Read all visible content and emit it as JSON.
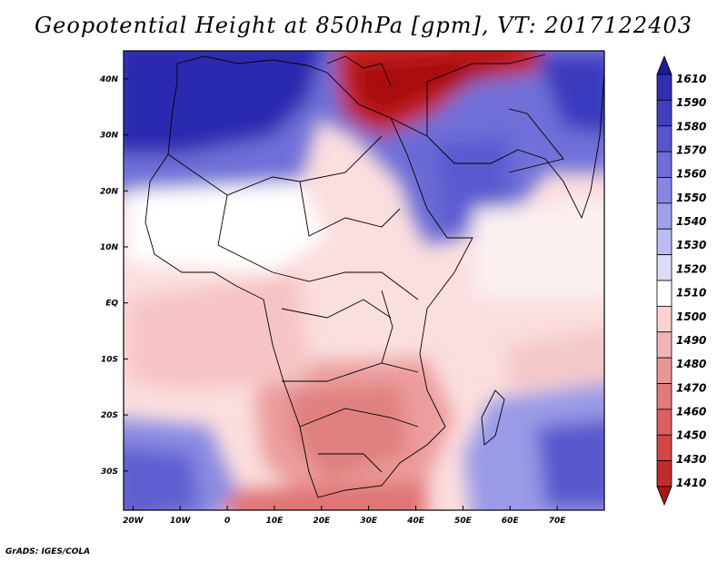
{
  "title": "Geopotential Height at 850hPa [gpm], VT: 2017122403",
  "credit": "GrADS: IGES/COLA",
  "map": {
    "lon_range": [
      -22,
      80
    ],
    "lat_range": [
      -37,
      45
    ],
    "lon_ticks": [
      {
        "value": -20,
        "label": "20W"
      },
      {
        "value": -10,
        "label": "10W"
      },
      {
        "value": 0,
        "label": "0"
      },
      {
        "value": 10,
        "label": "10E"
      },
      {
        "value": 20,
        "label": "20E"
      },
      {
        "value": 30,
        "label": "30E"
      },
      {
        "value": 40,
        "label": "40E"
      },
      {
        "value": 50,
        "label": "50E"
      },
      {
        "value": 60,
        "label": "60E"
      },
      {
        "value": 70,
        "label": "70E"
      }
    ],
    "lat_ticks": [
      {
        "value": 40,
        "label": "40N"
      },
      {
        "value": 30,
        "label": "30N"
      },
      {
        "value": 20,
        "label": "20N"
      },
      {
        "value": 10,
        "label": "10N"
      },
      {
        "value": 0,
        "label": "EQ"
      },
      {
        "value": -10,
        "label": "10S"
      },
      {
        "value": -20,
        "label": "20S"
      },
      {
        "value": -30,
        "label": "30S"
      }
    ]
  },
  "colorbar": {
    "labels": [
      "1610",
      "1590",
      "1580",
      "1570",
      "1560",
      "1550",
      "1540",
      "1530",
      "1520",
      "1510",
      "1500",
      "1490",
      "1480",
      "1470",
      "1460",
      "1450",
      "1430",
      "1410"
    ],
    "colors": [
      "#1f1a99",
      "#2f2fb0",
      "#4040bf",
      "#5656cc",
      "#6e6ed8",
      "#8686e2",
      "#a0a0ea",
      "#bcbcf1",
      "#dcdcf8",
      "#ffffff",
      "#fad2d2",
      "#f2b4b4",
      "#e99696",
      "#e27a7a",
      "#db5f5f",
      "#d24545",
      "#c22b2b",
      "#a81818"
    ]
  }
}
